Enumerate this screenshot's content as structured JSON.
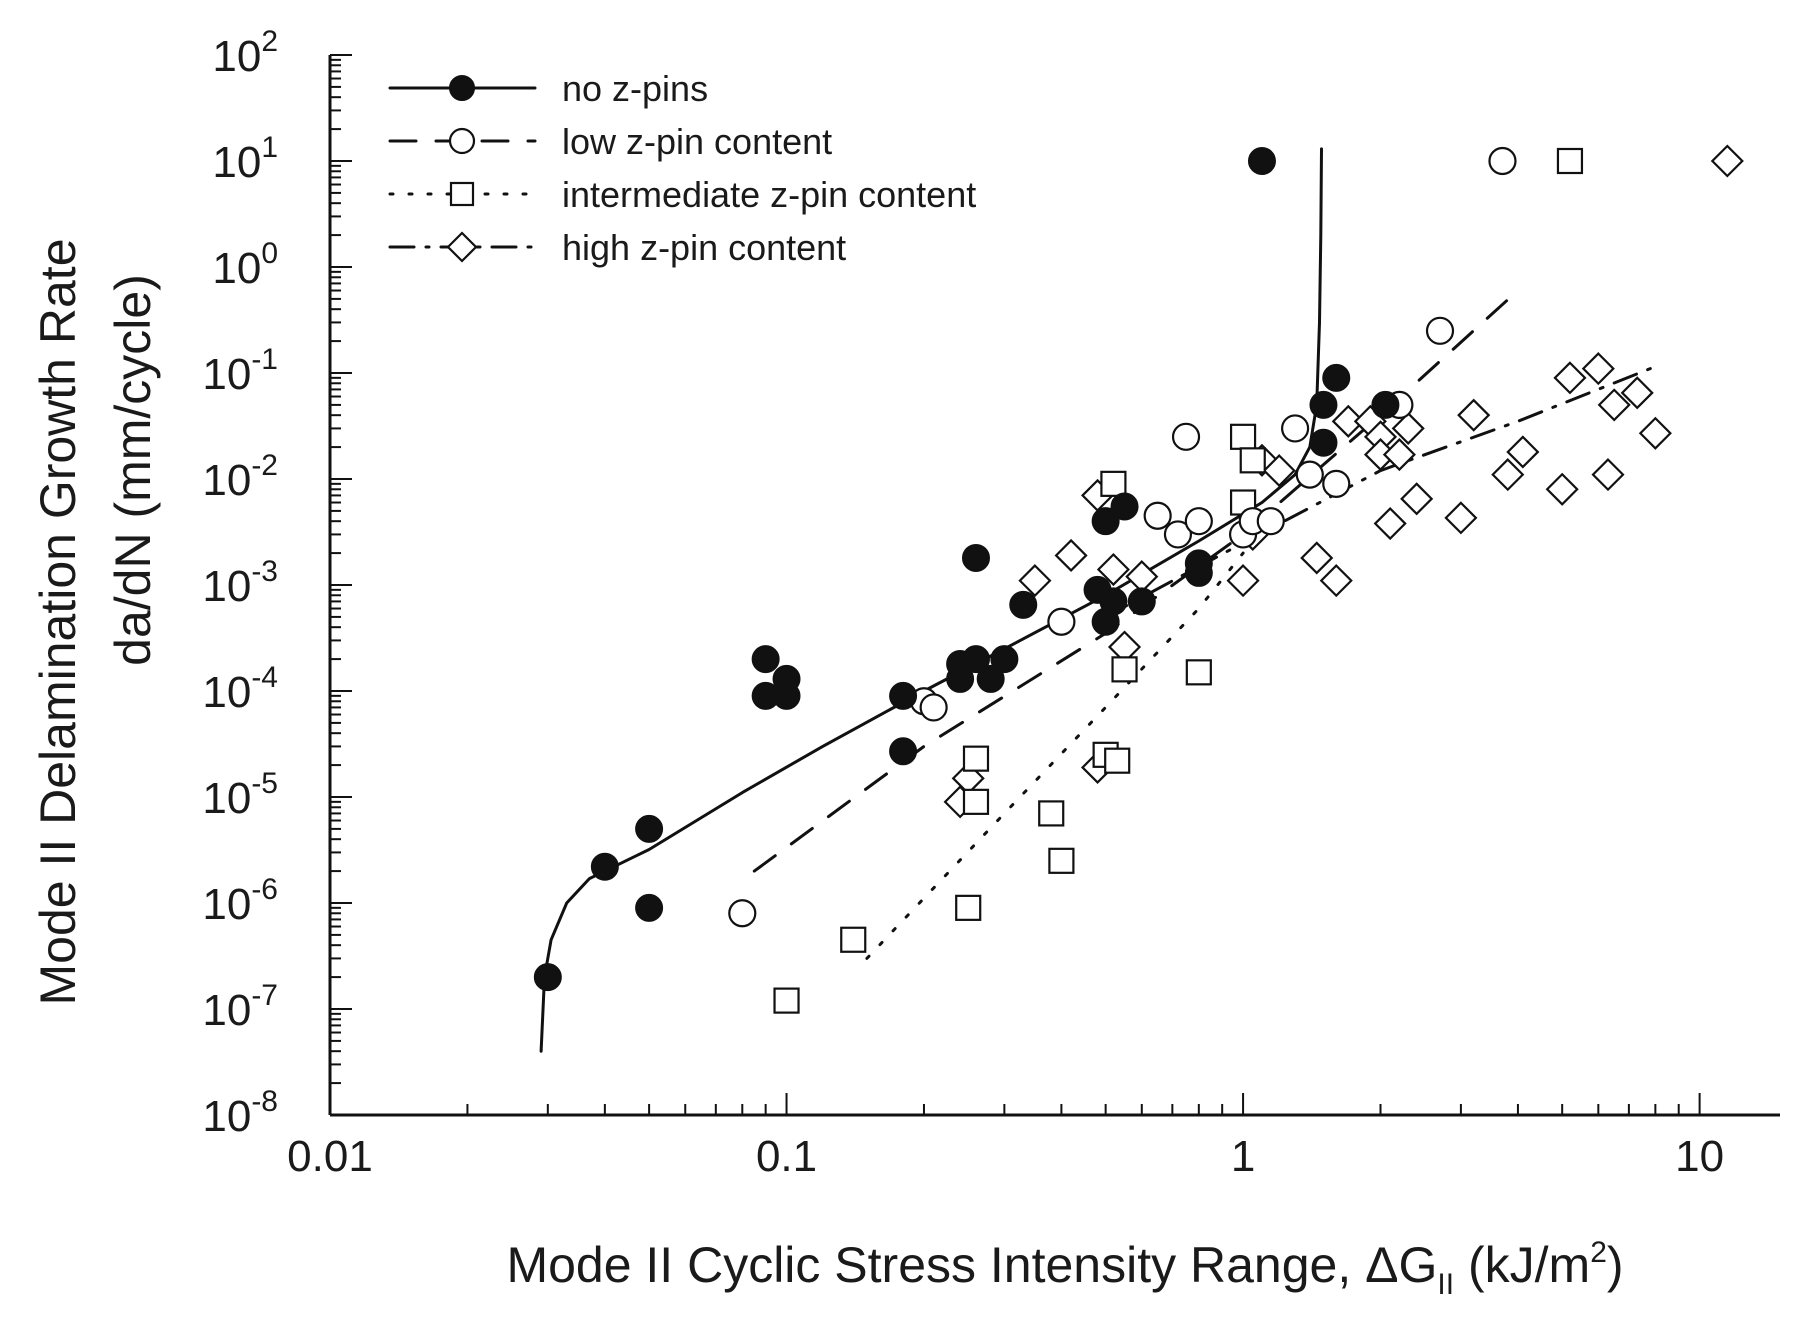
{
  "chart_data": {
    "type": "scatter",
    "title": "",
    "xlabel": {
      "text": "Mode II Cyclic Stress Intensity Range, ",
      "symbol": "ΔG",
      "subscript": "II",
      "unit_pre": " (kJ/m",
      "unit_sup": "2",
      "unit_post": ")"
    },
    "ylabel": {
      "line1": "Mode II Delamination Growth Rate",
      "line2": "da/dN (mm/cycle)"
    },
    "xscale": "log",
    "yscale": "log",
    "xlim": [
      0.01,
      15
    ],
    "ylim": [
      1e-08,
      100
    ],
    "x_ticks": [
      {
        "value": 0.01,
        "label": "0.01"
      },
      {
        "value": 0.1,
        "label": "0.1"
      },
      {
        "value": 1,
        "label": "1"
      },
      {
        "value": 10,
        "label": "10"
      }
    ],
    "y_ticks": [
      {
        "value": 1e-08,
        "base": "10",
        "exp": "-8"
      },
      {
        "value": 1e-07,
        "base": "10",
        "exp": "-7"
      },
      {
        "value": 1e-06,
        "base": "10",
        "exp": "-6"
      },
      {
        "value": 1e-05,
        "base": "10",
        "exp": "-5"
      },
      {
        "value": 0.0001,
        "base": "10",
        "exp": "-4"
      },
      {
        "value": 0.001,
        "base": "10",
        "exp": "-3"
      },
      {
        "value": 0.01,
        "base": "10",
        "exp": "-2"
      },
      {
        "value": 0.1,
        "base": "10",
        "exp": "-1"
      },
      {
        "value": 1,
        "base": "10",
        "exp": "0"
      },
      {
        "value": 10,
        "base": "10",
        "exp": "1"
      },
      {
        "value": 100,
        "base": "10",
        "exp": "2"
      }
    ],
    "grid": false,
    "legend_position": "top-left",
    "series": [
      {
        "name": "no z-pins",
        "marker": "filled-circle",
        "line": "solid",
        "points": [
          [
            0.03,
            2e-07
          ],
          [
            0.04,
            2.2e-06
          ],
          [
            0.05,
            5e-06
          ],
          [
            0.05,
            9e-07
          ],
          [
            0.09,
            0.0002
          ],
          [
            0.09,
            9e-05
          ],
          [
            0.1,
            9e-05
          ],
          [
            0.1,
            0.00013
          ],
          [
            0.18,
            9e-05
          ],
          [
            0.18,
            2.7e-05
          ],
          [
            0.24,
            0.00013
          ],
          [
            0.24,
            0.00018
          ],
          [
            0.26,
            0.0002
          ],
          [
            0.26,
            0.0018
          ],
          [
            0.28,
            0.00013
          ],
          [
            0.3,
            0.0002
          ],
          [
            0.33,
            0.00065
          ],
          [
            0.48,
            0.0009
          ],
          [
            0.5,
            0.004
          ],
          [
            0.5,
            0.00045
          ],
          [
            0.52,
            0.0007
          ],
          [
            0.55,
            0.0055
          ],
          [
            0.6,
            0.0007
          ],
          [
            0.8,
            0.0016
          ],
          [
            0.8,
            0.0013
          ],
          [
            1.1,
            10
          ],
          [
            1.5,
            0.05
          ],
          [
            1.5,
            0.022
          ],
          [
            1.6,
            0.09
          ],
          [
            2.05,
            0.05
          ]
        ],
        "curve": [
          [
            0.029,
            4e-08
          ],
          [
            0.0295,
            2e-07
          ],
          [
            0.0305,
            4.5e-07
          ],
          [
            0.033,
            1e-06
          ],
          [
            0.037,
            1.7e-06
          ],
          [
            0.05,
            3.2e-06
          ],
          [
            0.08,
            1.1e-05
          ],
          [
            0.12,
            3e-05
          ],
          [
            0.2,
            0.0001
          ],
          [
            0.3,
            0.00025
          ],
          [
            0.5,
            0.0008
          ],
          [
            0.8,
            0.0026
          ],
          [
            1.1,
            0.006
          ],
          [
            1.3,
            0.011
          ],
          [
            1.4,
            0.02
          ],
          [
            1.45,
            0.05
          ],
          [
            1.47,
            0.3
          ],
          [
            1.48,
            2
          ],
          [
            1.485,
            13
          ]
        ]
      },
      {
        "name": "low z-pin content",
        "marker": "open-circle",
        "line": "dashed",
        "points": [
          [
            0.08,
            8e-07
          ],
          [
            0.2,
            8e-05
          ],
          [
            0.21,
            7e-05
          ],
          [
            0.4,
            0.00045
          ],
          [
            0.65,
            0.0045
          ],
          [
            0.72,
            0.003
          ],
          [
            0.75,
            0.025
          ],
          [
            0.8,
            0.004
          ],
          [
            1.0,
            0.003
          ],
          [
            1.05,
            0.004
          ],
          [
            1.15,
            0.004
          ],
          [
            1.3,
            0.03
          ],
          [
            1.4,
            0.011
          ],
          [
            1.6,
            0.009
          ],
          [
            2.2,
            0.05
          ],
          [
            2.7,
            0.25
          ],
          [
            3.7,
            10
          ]
        ],
        "curve": [
          [
            0.085,
            2e-06
          ],
          [
            0.2,
            3e-05
          ],
          [
            0.5,
            0.00035
          ],
          [
            1.0,
            0.003
          ],
          [
            2.0,
            0.04
          ],
          [
            4.0,
            0.6
          ]
        ]
      },
      {
        "name": "intermediate z-pin content",
        "marker": "open-square",
        "line": "dotted",
        "points": [
          [
            0.1,
            1.2e-07
          ],
          [
            0.14,
            4.5e-07
          ],
          [
            0.25,
            9e-07
          ],
          [
            0.26,
            2.3e-05
          ],
          [
            0.26,
            9e-06
          ],
          [
            0.38,
            7e-06
          ],
          [
            0.4,
            2.5e-06
          ],
          [
            0.5,
            2.5e-05
          ],
          [
            0.52,
            0.009
          ],
          [
            0.53,
            2.2e-05
          ],
          [
            0.55,
            0.00016
          ],
          [
            0.8,
            0.00015
          ],
          [
            1.0,
            0.006
          ],
          [
            1.0,
            0.025
          ],
          [
            1.05,
            0.015
          ],
          [
            5.2,
            10
          ]
        ],
        "curve": [
          [
            0.15,
            3e-07
          ],
          [
            0.3,
            7e-06
          ],
          [
            0.5,
            7e-05
          ],
          [
            0.8,
            0.0006
          ],
          [
            1.0,
            0.002
          ]
        ]
      },
      {
        "name": "high z-pin content",
        "marker": "open-diamond",
        "line": "dash-dot",
        "points": [
          [
            0.24,
            9e-06
          ],
          [
            0.25,
            1.5e-05
          ],
          [
            0.48,
            1.9e-05
          ],
          [
            0.35,
            0.0011
          ],
          [
            0.42,
            0.0019
          ],
          [
            0.48,
            0.007
          ],
          [
            0.52,
            0.0014
          ],
          [
            0.55,
            0.00026
          ],
          [
            0.6,
            0.0012
          ],
          [
            1.0,
            0.0011
          ],
          [
            1.05,
            0.003
          ],
          [
            1.1,
            0.015
          ],
          [
            1.2,
            0.012
          ],
          [
            1.45,
            0.0018
          ],
          [
            1.6,
            0.0011
          ],
          [
            1.7,
            0.035
          ],
          [
            1.9,
            0.035
          ],
          [
            2.0,
            0.025
          ],
          [
            2.0,
            0.017
          ],
          [
            2.1,
            0.0038
          ],
          [
            2.2,
            0.017
          ],
          [
            2.3,
            0.03
          ],
          [
            2.4,
            0.0065
          ],
          [
            3.0,
            0.0043
          ],
          [
            3.2,
            0.04
          ],
          [
            3.8,
            0.011
          ],
          [
            4.1,
            0.018
          ],
          [
            5.0,
            0.008
          ],
          [
            5.2,
            0.09
          ],
          [
            6.0,
            0.11
          ],
          [
            6.3,
            0.011
          ],
          [
            6.5,
            0.05
          ],
          [
            7.3,
            0.065
          ],
          [
            8.0,
            0.027
          ],
          [
            11.5,
            10
          ]
        ],
        "curve": [
          [
            0.5,
            0.0005
          ],
          [
            1.0,
            0.0025
          ],
          [
            2.0,
            0.012
          ],
          [
            4.0,
            0.035
          ],
          [
            7.8,
            0.11
          ]
        ]
      }
    ]
  }
}
